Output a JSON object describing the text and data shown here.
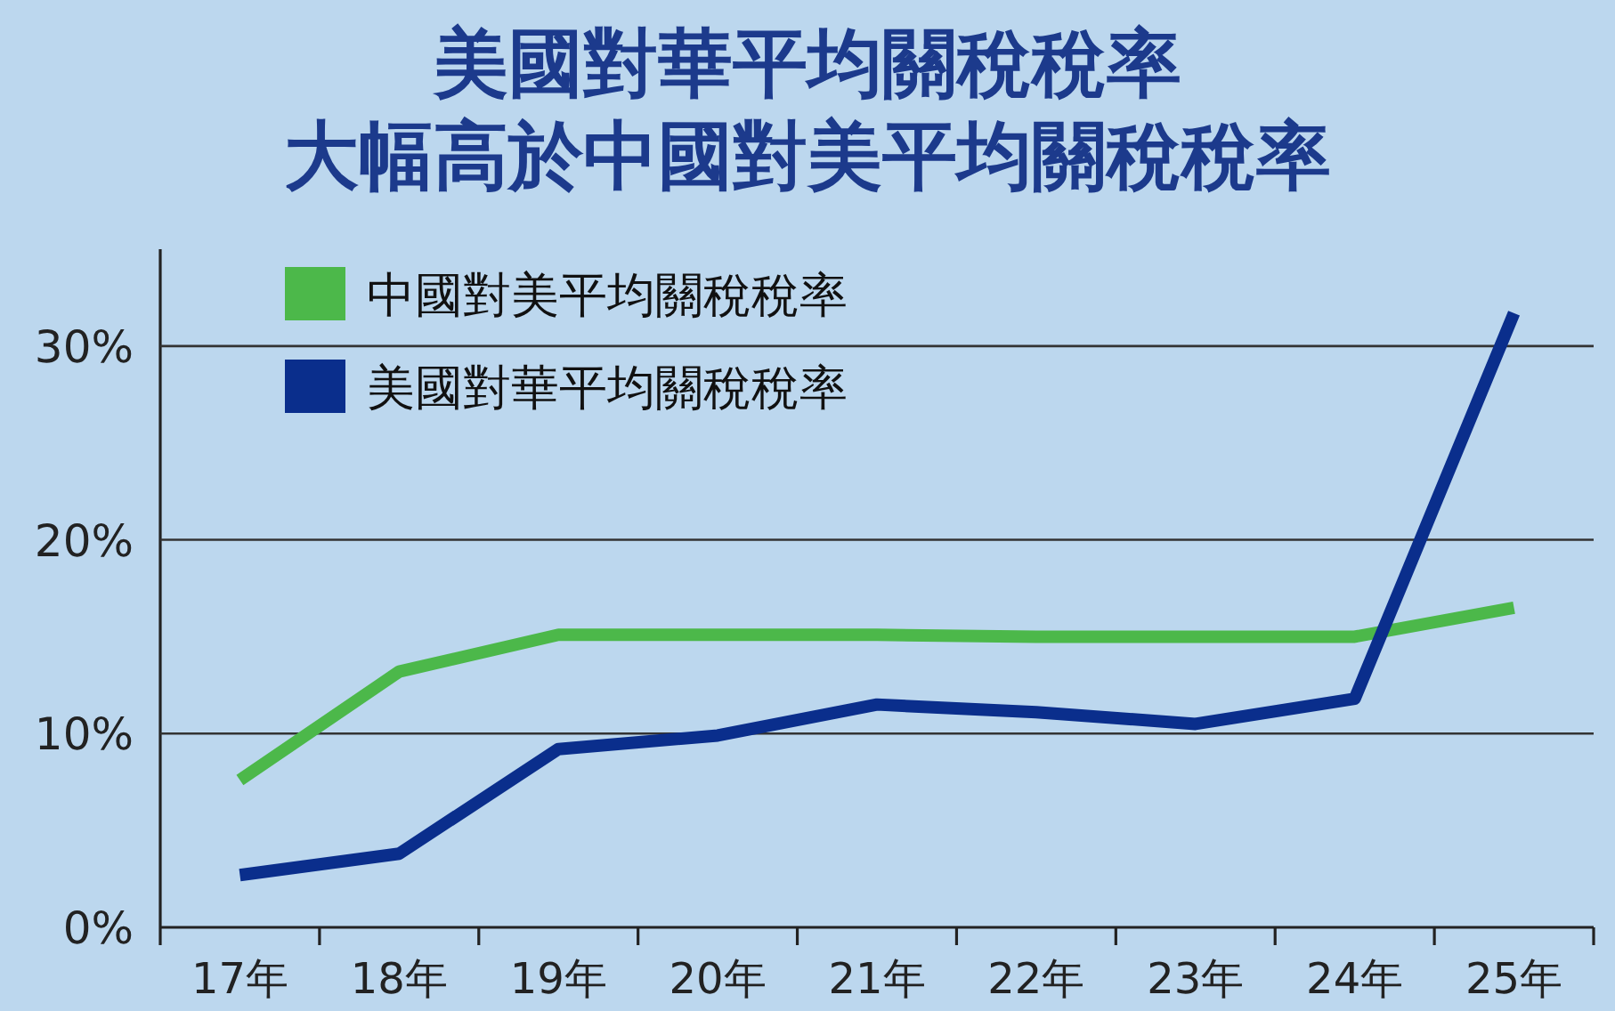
{
  "chart_data": {
    "type": "line",
    "title": "美國對華平均關稅稅率",
    "subtitle": "大幅高於中國對美平均關稅稅率",
    "categories": [
      "17年",
      "18年",
      "19年",
      "20年",
      "21年",
      "22年",
      "23年",
      "24年",
      "25年"
    ],
    "series": [
      {
        "name": "中國對美平均關稅稅率",
        "color": "#4cb84a",
        "values": [
          7.6,
          13.2,
          15.1,
          15.1,
          15.1,
          15.0,
          15.0,
          15.0,
          16.5
        ]
      },
      {
        "name": "美國對華平均關稅稅率",
        "color": "#0a2e8c",
        "values": [
          2.7,
          3.8,
          9.2,
          9.9,
          11.5,
          11.1,
          10.5,
          11.8,
          31.7
        ]
      }
    ],
    "yticks": [
      {
        "value": 0,
        "label": "0%"
      },
      {
        "value": 10,
        "label": "10%"
      },
      {
        "value": 20,
        "label": "20%"
      },
      {
        "value": 30,
        "label": "30%"
      }
    ],
    "ylim": [
      0,
      35
    ],
    "grid": "y",
    "legend": "top left"
  }
}
